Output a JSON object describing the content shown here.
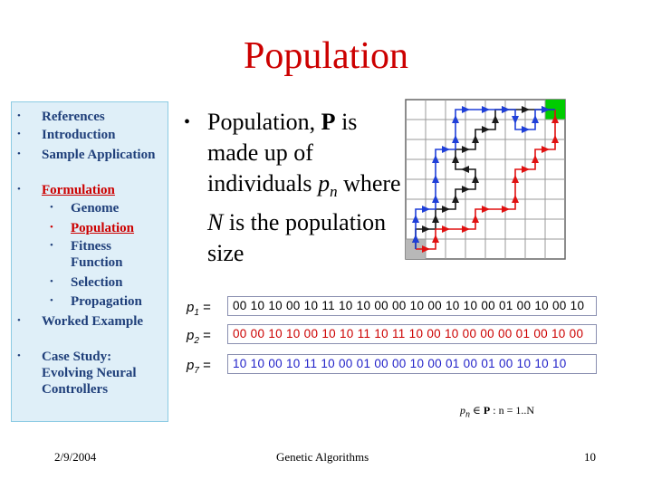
{
  "slide": {
    "title": "Population",
    "date": "2/9/2004",
    "footer_center": "Genetic Algorithms",
    "page_number": "10"
  },
  "outline": [
    {
      "label": "References",
      "bullet": "•",
      "level": 1,
      "active": false
    },
    {
      "label": "Introduction",
      "bullet": "•",
      "level": 1,
      "active": false
    },
    {
      "label": "Sample Application",
      "bullet": "•",
      "level": 1,
      "active": false
    },
    {
      "label": "Formulation",
      "bullet": "•",
      "level": 1,
      "active": true
    },
    {
      "label": "Genome",
      "bullet": "•",
      "level": 2,
      "active": false
    },
    {
      "label": "Population",
      "bullet": "•",
      "level": 2,
      "active": true
    },
    {
      "label": "Fitness Function",
      "bullet": "•",
      "level": 2,
      "active": false
    },
    {
      "label": "Selection",
      "bullet": "•",
      "level": 2,
      "active": false
    },
    {
      "label": "Propagation",
      "bullet": "•",
      "level": 2,
      "active": false
    },
    {
      "label": "Worked Example",
      "bullet": "•",
      "level": 1,
      "active": false
    },
    {
      "label": "Case Study: Evolving Neural Controllers",
      "bullet": "•",
      "level": 1,
      "active": false
    }
  ],
  "main": {
    "bullet_dot": "•",
    "text_pre": "Population, ",
    "text_bold": "P",
    "text_mid": " is made up of individuals ",
    "text_p": "p",
    "text_sub": "n",
    "text_post": " where ",
    "text_N": "N",
    "text_end": " is the population size"
  },
  "sequences": [
    {
      "label": "p",
      "sub": "1",
      "eq": "=",
      "bits": "00 10 10 00 10 11 10 10 00 00 10 00 10 10 00 01 00 10 00 10",
      "color": "#000000"
    },
    {
      "label": "p",
      "sub": "2",
      "eq": "=",
      "bits": "00 00 10 10 00 10 10 11 10 11 10 00 10 00 00 00 01 00 10 00",
      "color": "#cc0000"
    },
    {
      "label": "p",
      "sub": "7",
      "eq": "=",
      "bits": "10 10 00 10 11 10 00 01 00 00 10 00 01 00 01 00 10 10 10",
      "color": "#1f1fc8"
    }
  ],
  "formula": {
    "p": "p",
    "n": "n",
    "rest": " ∈ ",
    "P": "P",
    "tail": " : n = 1..N"
  },
  "colors": {
    "title": "#cc0000",
    "outline_bg": "#dfeff8",
    "start": "#b8b8b8",
    "goal": "#00cc00"
  }
}
